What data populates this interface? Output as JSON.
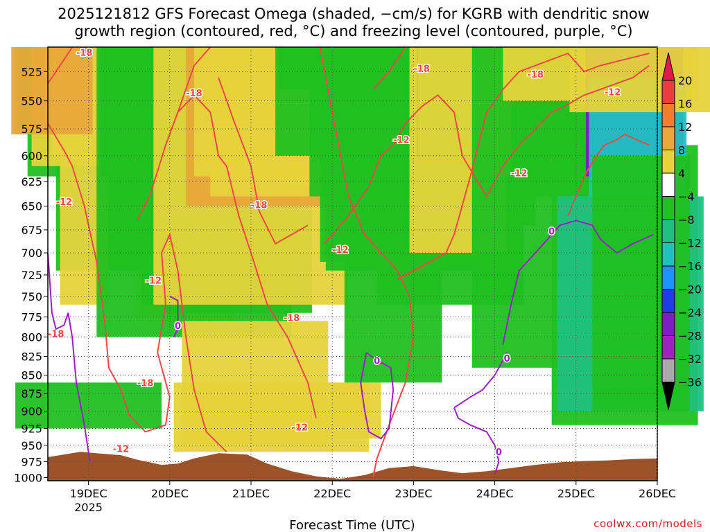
{
  "title": {
    "line1": "2025121812 GFS Forecast Omega (shaded, −cm/s) for KGRB with dendritic snow",
    "line2": "growth region (contoured, red, °C) and freezing level (contoured, purple, °C)"
  },
  "credit": "coolwx.com/models",
  "colorbar": {
    "labels": [
      "20",
      "16",
      "12",
      "8",
      "4",
      "−4",
      "−8",
      "−12",
      "−16",
      "−20",
      "−24",
      "−28",
      "−32",
      "−36"
    ],
    "colors": [
      "#e01a4f",
      "#ee3b3b",
      "#f47c2c",
      "#e8a83a",
      "#e6d33c",
      "#ffffff",
      "#20c020",
      "#20c080",
      "#20c0c0",
      "#1e90ff",
      "#1c3ee8",
      "#7a1ec8",
      "#a020c0",
      "#a8a8a8",
      "#000000"
    ]
  },
  "colors": {
    "terrain": "#9c5328",
    "dgz_contour": "#f04848",
    "freezing_contour": "#9c1ec8",
    "grid": "#555555"
  },
  "chart_data": {
    "type": "heatmap",
    "title": "2025121812 GFS Forecast Omega (shaded, −cm/s) for KGRB with dendritic snow growth region (contoured, red, °C) and freezing level (contoured, purple, °C)",
    "xlabel": "Forecast Time (UTC)",
    "ylabel": "",
    "x_ticks": [
      "19DEC",
      "20DEC",
      "21DEC",
      "22DEC",
      "23DEC",
      "24DEC",
      "25DEC",
      "26DEC"
    ],
    "x_tick_sublabel": "2025",
    "y_ticks": [
      525,
      550,
      575,
      600,
      625,
      650,
      675,
      700,
      725,
      750,
      775,
      800,
      825,
      850,
      875,
      900,
      925,
      950,
      975,
      1000
    ],
    "y_scale": "log (pressure, hPa)",
    "ylim": [
      1005,
      505
    ],
    "xlim": [
      "18DEC 12Z",
      "26DEC 00Z"
    ],
    "grid": true,
    "colorbar_levels": [
      20,
      16,
      12,
      8,
      4,
      -4,
      -8,
      -12,
      -16,
      -20,
      -24,
      -28,
      -32,
      -36
    ],
    "contours": {
      "dendritic_snow_growth_labels": [
        "-18",
        "-18",
        "-18",
        "-18",
        "-18",
        "-18",
        "-18",
        "-18",
        "-12",
        "-12",
        "-12",
        "-12",
        "-12",
        "-12",
        "-12",
        "-12"
      ],
      "freezing_level_labels": [
        "0",
        "0",
        "0",
        "0",
        "0"
      ]
    }
  }
}
